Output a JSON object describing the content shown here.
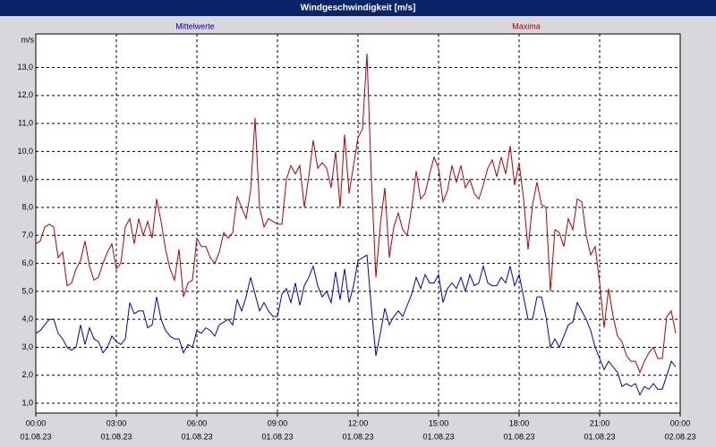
{
  "chart_data": {
    "type": "line",
    "title": "Windgeschwindigkeit [m/s]",
    "y_label": "m/s",
    "x": [
      0,
      10,
      20,
      30,
      40,
      50,
      60,
      70,
      80,
      90,
      100,
      110,
      120,
      130,
      140,
      150,
      160,
      170,
      180,
      190,
      200,
      210,
      220,
      230,
      240,
      250,
      260,
      270,
      280,
      290,
      300,
      310,
      320,
      330,
      340,
      350,
      360,
      370,
      380,
      390,
      400,
      410,
      420,
      430,
      440,
      450,
      460,
      470,
      480,
      490,
      500,
      510,
      520,
      530,
      540,
      550,
      560,
      570,
      580,
      590,
      600,
      610,
      620,
      630,
      640,
      650,
      660,
      670,
      680,
      690,
      700,
      710,
      720,
      730,
      740,
      750,
      760,
      770,
      780,
      790,
      800,
      810,
      820,
      830,
      840,
      850,
      860,
      870,
      880,
      890,
      900,
      910,
      920,
      930,
      940,
      950,
      960,
      970,
      980,
      990,
      1000,
      1010,
      1020,
      1030,
      1040,
      1050,
      1060,
      1070,
      1080,
      1090,
      1100,
      1110,
      1120,
      1130,
      1140,
      1150,
      1160,
      1170,
      1180,
      1190,
      1200,
      1210,
      1220,
      1230,
      1240,
      1250,
      1260,
      1270,
      1280,
      1290,
      1300,
      1310,
      1320,
      1330,
      1340,
      1350,
      1360,
      1370,
      1380,
      1390,
      1400,
      1410,
      1420,
      1430
    ],
    "series": [
      {
        "name": "Mittelwerte",
        "color": "#0000c8",
        "values": [
          3.5,
          3.6,
          3.8,
          4.0,
          4.0,
          3.5,
          3.3,
          3.0,
          2.9,
          3.0,
          3.8,
          3.1,
          3.7,
          3.3,
          3.2,
          2.8,
          3.0,
          3.4,
          3.2,
          3.1,
          3.3,
          4.6,
          4.2,
          4.3,
          4.3,
          3.7,
          3.8,
          4.8,
          4.0,
          3.6,
          3.4,
          3.3,
          3.3,
          2.8,
          3.1,
          3.0,
          3.6,
          3.5,
          3.7,
          3.6,
          3.4,
          3.8,
          3.9,
          4.0,
          3.8,
          4.7,
          4.3,
          4.8,
          5.5,
          4.9,
          4.3,
          4.6,
          4.3,
          4.1,
          4.1,
          4.9,
          5.1,
          4.6,
          5.3,
          4.5,
          5.2,
          5.5,
          5.9,
          5.2,
          4.8,
          5.0,
          4.6,
          5.7,
          4.7,
          5.8,
          4.6,
          5.2,
          6.1,
          6.2,
          6.3,
          4.4,
          2.7,
          3.5,
          4.4,
          3.8,
          4.1,
          4.3,
          4.1,
          4.5,
          4.9,
          5.5,
          5.1,
          5.6,
          5.3,
          5.3,
          5.6,
          4.6,
          5.1,
          5.3,
          5.1,
          5.5,
          5.0,
          5.6,
          5.2,
          5.3,
          5.9,
          5.3,
          5.2,
          5.2,
          5.5,
          5.3,
          5.9,
          5.2,
          5.6,
          4.8,
          4.0,
          4.0,
          4.8,
          4.8,
          4.1,
          3.0,
          3.3,
          3.0,
          3.4,
          3.8,
          3.9,
          4.6,
          4.3,
          4.0,
          3.6,
          3.0,
          2.6,
          2.2,
          2.5,
          2.3,
          2.1,
          1.6,
          1.7,
          1.6,
          1.7,
          1.3,
          1.6,
          1.5,
          1.7,
          1.5,
          1.5,
          2.0,
          2.5,
          2.3
        ]
      },
      {
        "name": "Maxima",
        "color": "#b40000",
        "values": [
          6.7,
          6.8,
          7.3,
          7.4,
          7.3,
          6.2,
          6.4,
          5.2,
          5.3,
          5.8,
          6.1,
          6.8,
          5.9,
          5.4,
          5.5,
          6.0,
          6.4,
          6.7,
          5.8,
          6.0,
          7.3,
          7.6,
          6.7,
          7.6,
          7.0,
          7.5,
          6.9,
          8.3,
          7.5,
          6.5,
          5.8,
          5.4,
          6.5,
          4.8,
          5.3,
          5.4,
          6.9,
          6.6,
          6.6,
          6.2,
          6.0,
          6.4,
          7.1,
          6.9,
          7.1,
          8.4,
          8.0,
          7.6,
          8.6,
          11.2,
          8.0,
          7.3,
          7.6,
          7.5,
          7.4,
          7.4,
          9.0,
          9.5,
          9.2,
          9.5,
          8.0,
          9.1,
          10.4,
          9.4,
          9.6,
          9.4,
          8.7,
          10.0,
          8.0,
          10.6,
          8.5,
          9.5,
          10.5,
          10.8,
          13.5,
          9.0,
          5.5,
          7.4,
          8.7,
          6.2,
          7.3,
          7.8,
          7.2,
          7.0,
          8.0,
          9.3,
          8.3,
          8.5,
          9.2,
          9.8,
          9.4,
          8.2,
          8.6,
          9.5,
          8.9,
          9.5,
          8.7,
          9.0,
          8.5,
          8.3,
          8.8,
          9.4,
          9.7,
          9.1,
          9.8,
          9.2,
          10.2,
          8.8,
          9.6,
          8.3,
          6.5,
          8.1,
          8.9,
          8.1,
          8.0,
          5.0,
          7.2,
          7.1,
          6.6,
          7.6,
          7.2,
          8.3,
          8.2,
          7.0,
          6.3,
          6.6,
          5.3,
          3.7,
          5.1,
          4.1,
          3.4,
          3.2,
          2.7,
          2.5,
          2.5,
          2.1,
          2.5,
          2.8,
          3.0,
          2.6,
          2.6,
          4.1,
          4.3,
          3.5
        ]
      }
    ],
    "xlim": [
      0,
      1440
    ],
    "xticks": [
      {
        "value": 0,
        "label": "00:00"
      },
      {
        "value": 180,
        "label": "03:00"
      },
      {
        "value": 360,
        "label": "06:00"
      },
      {
        "value": 540,
        "label": "09:00"
      },
      {
        "value": 720,
        "label": "12:00"
      },
      {
        "value": 900,
        "label": "15:00"
      },
      {
        "value": 1080,
        "label": "18:00"
      },
      {
        "value": 1260,
        "label": "21:00"
      },
      {
        "value": 1440,
        "label": "00:00"
      }
    ],
    "xtick_dates": [
      "01.08.23",
      "01.08.23",
      "01.08.23",
      "01.08.23",
      "01.08.23",
      "01.08.23",
      "01.08.23",
      "01.08.23",
      "02.08.23"
    ],
    "ylim": [
      0.65,
      14.2
    ],
    "yticks": [
      {
        "value": 1,
        "label": "1,0"
      },
      {
        "value": 2,
        "label": "2,0"
      },
      {
        "value": 3,
        "label": "3,0"
      },
      {
        "value": 4,
        "label": "4,0"
      },
      {
        "value": 5,
        "label": "5,0"
      },
      {
        "value": 6,
        "label": "6,0"
      },
      {
        "value": 7,
        "label": "7,0"
      },
      {
        "value": 8,
        "label": "8,0"
      },
      {
        "value": 9,
        "label": "9,0"
      },
      {
        "value": 10,
        "label": "10,0"
      },
      {
        "value": 11,
        "label": "11,0"
      },
      {
        "value": 12,
        "label": "12,0"
      },
      {
        "value": 13,
        "label": "13,0"
      }
    ],
    "grid": true
  }
}
